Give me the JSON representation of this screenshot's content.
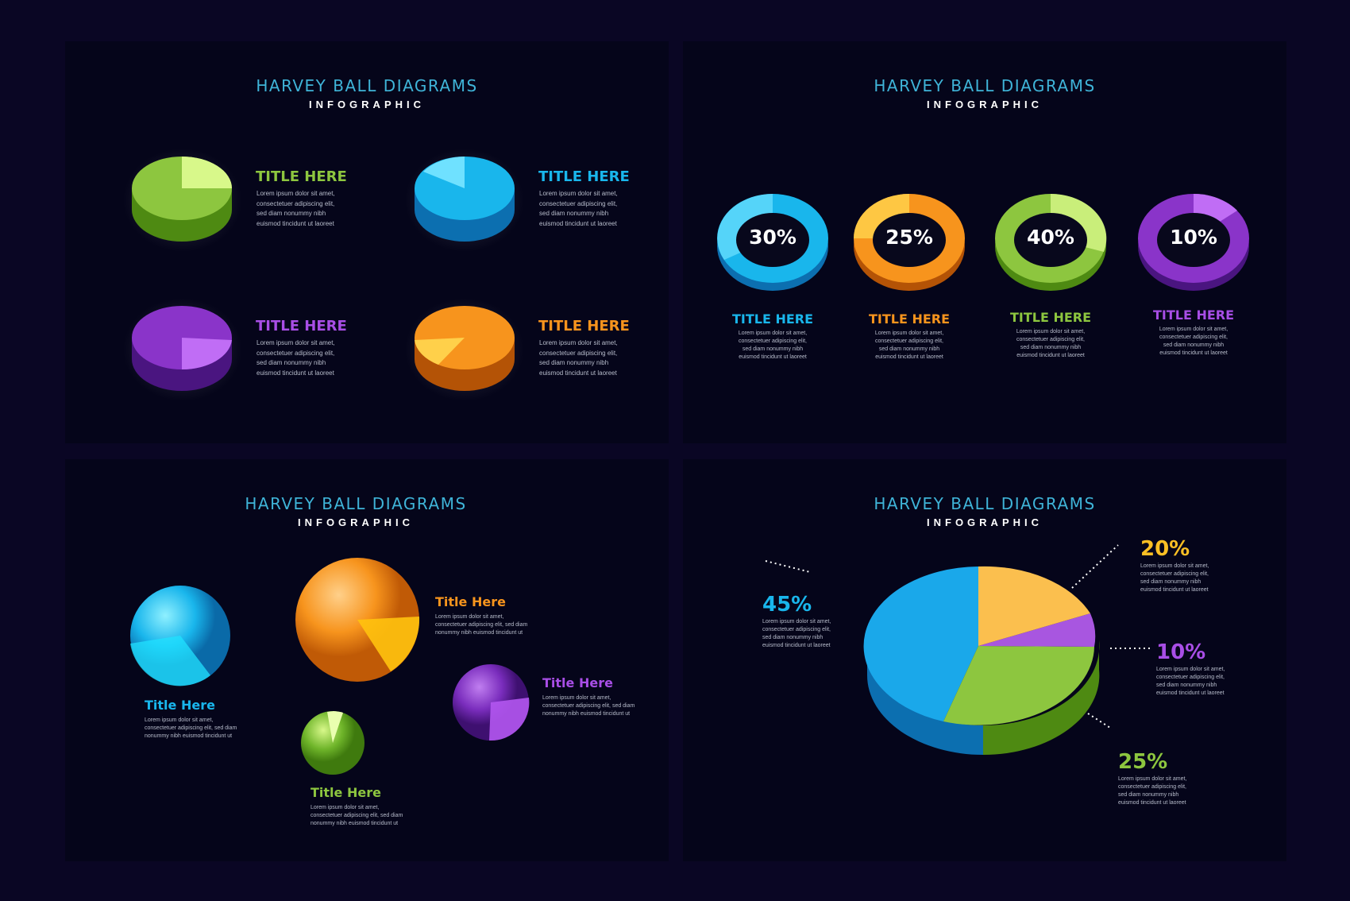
{
  "colors": {
    "green": "#8dc63f",
    "blue": "#19b6ec",
    "purple": "#9b3fd6",
    "orange": "#f7941d",
    "title": "#3fb4d8"
  },
  "panels": [
    {
      "title": "HARVEY BALL DIAGRAMS",
      "subtitle": "INFOGRAPHIC",
      "items": [
        {
          "title": "TITLE HERE",
          "text": [
            "Lorem ipsum dolor sit amet,",
            "consectetuer adipiscing elit,",
            "sed diam nonummy nibh",
            "euismod tincidunt ut laoreet"
          ]
        },
        {
          "title": "TITLE HERE",
          "text": [
            "Lorem ipsum dolor sit amet,",
            "consectetuer adipiscing elit,",
            "sed diam nonummy nibh",
            "euismod tincidunt ut laoreet"
          ]
        },
        {
          "title": "TITLE HERE",
          "text": [
            "Lorem ipsum dolor sit amet,",
            "consectetuer adipiscing elit,",
            "sed diam nonummy nibh",
            "euismod tincidunt ut laoreet"
          ]
        },
        {
          "title": "TITLE HERE",
          "text": [
            "Lorem ipsum dolor sit amet,",
            "consectetuer adipiscing elit,",
            "sed diam nonummy nibh",
            "euismod tincidunt ut laoreet"
          ]
        }
      ]
    },
    {
      "title": "HARVEY BALL DIAGRAMS",
      "subtitle": "INFOGRAPHIC",
      "items": [
        {
          "percent": "30%",
          "title": "TITLE HERE",
          "text": [
            "Lorem ipsum dolor sit amet,",
            "consectetuer adipiscing elit,",
            "sed diam nonummy nibh",
            "euismod tincidunt ut laoreet"
          ]
        },
        {
          "percent": "25%",
          "title": "TITLE HERE",
          "text": [
            "Lorem ipsum dolor sit amet,",
            "consectetuer adipiscing elit,",
            "sed diam nonummy nibh",
            "euismod tincidunt ut laoreet"
          ]
        },
        {
          "percent": "40%",
          "title": "TITLE HERE",
          "text": [
            "Lorem ipsum dolor sit amet,",
            "consectetuer adipiscing elit,",
            "sed diam nonummy nibh",
            "euismod tincidunt ut laoreet"
          ]
        },
        {
          "percent": "10%",
          "title": "TITLE HERE",
          "text": [
            "Lorem ipsum dolor sit amet,",
            "consectetuer adipiscing elit,",
            "sed diam nonummy nibh",
            "euismod tincidunt ut laoreet"
          ]
        }
      ]
    },
    {
      "title": "HARVEY BALL DIAGRAMS",
      "subtitle": "INFOGRAPHIC",
      "items": [
        {
          "title": "Title Here",
          "text": [
            "Lorem ipsum dolor sit amet,",
            "consectetuer adipiscing elit, sed diam",
            "nonummy nibh euismod tincidunt ut"
          ]
        },
        {
          "title": "Title Here",
          "text": [
            "Lorem ipsum dolor sit amet,",
            "consectetuer adipiscing elit, sed diam",
            "nonummy nibh euismod tincidunt ut"
          ]
        },
        {
          "title": "Title Here",
          "text": [
            "Lorem ipsum dolor sit amet,",
            "consectetuer adipiscing elit, sed diam",
            "nonummy nibh euismod tincidunt ut"
          ]
        },
        {
          "title": "Title Here",
          "text": [
            "Lorem ipsum dolor sit amet,",
            "consectetuer adipiscing elit, sed diam",
            "nonummy nibh euismod tincidunt ut"
          ]
        }
      ]
    },
    {
      "title": "HARVEY BALL DIAGRAMS",
      "subtitle": "INFOGRAPHIC",
      "items": [
        {
          "percent": "45%",
          "text": [
            "Lorem ipsum dolor sit amet,",
            "consectetuer adipiscing elit,",
            "sed diam nonummy nibh",
            "euismod tincidunt ut laoreet"
          ]
        },
        {
          "percent": "20%",
          "text": [
            "Lorem ipsum dolor sit amet,",
            "consectetuer adipiscing elit,",
            "sed diam nonummy nibh",
            "euismod tincidunt ut laoreet"
          ]
        },
        {
          "percent": "10%",
          "text": [
            "Lorem ipsum dolor sit amet,",
            "consectetuer adipiscing elit,",
            "sed diam nonummy nibh",
            "euismod tincidunt ut laoreet"
          ]
        },
        {
          "percent": "25%",
          "text": [
            "Lorem ipsum dolor sit amet,",
            "consectetuer adipiscing elit,",
            "sed diam nonummy nibh",
            "euismod tincidunt ut laoreet"
          ]
        }
      ]
    }
  ]
}
